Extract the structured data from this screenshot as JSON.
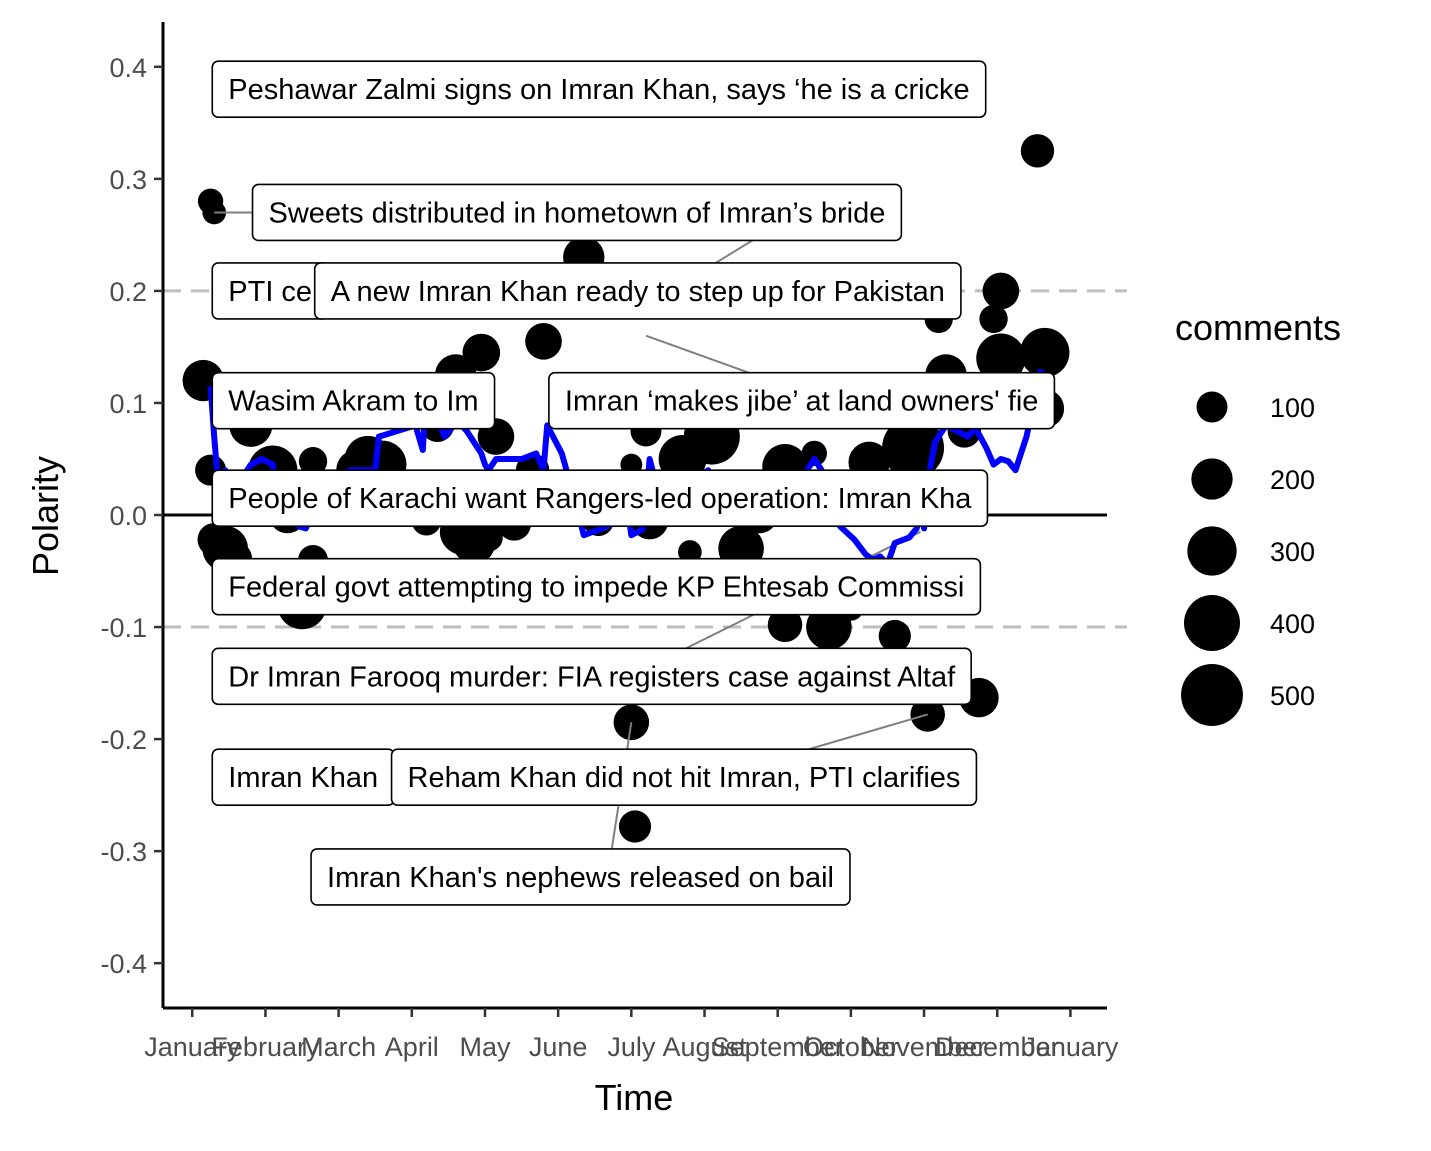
{
  "chart_data": {
    "type": "scatter",
    "xlabel": "Time",
    "ylabel": "Polarity",
    "ylim": [
      -0.44,
      0.44
    ],
    "xlim_months": [
      -0.4,
      12.5
    ],
    "y_ticks": [
      {
        "value": 0.4,
        "label": "0.4"
      },
      {
        "value": 0.3,
        "label": "0.3"
      },
      {
        "value": 0.2,
        "label": "0.2"
      },
      {
        "value": 0.1,
        "label": "0.1"
      },
      {
        "value": 0.0,
        "label": "0.0"
      },
      {
        "value": -0.1,
        "label": "-0.1"
      },
      {
        "value": -0.2,
        "label": "-0.2"
      },
      {
        "value": -0.3,
        "label": "-0.3"
      },
      {
        "value": -0.4,
        "label": "-0.4"
      }
    ],
    "x_ticks": [
      {
        "value": 0,
        "label": "January"
      },
      {
        "value": 1,
        "label": "February"
      },
      {
        "value": 2,
        "label": "March"
      },
      {
        "value": 3,
        "label": "April"
      },
      {
        "value": 4,
        "label": "May"
      },
      {
        "value": 5,
        "label": "June"
      },
      {
        "value": 6,
        "label": "July"
      },
      {
        "value": 7,
        "label": "August"
      },
      {
        "value": 8,
        "label": "September"
      },
      {
        "value": 9,
        "label": "October"
      },
      {
        "value": 10,
        "label": "November"
      },
      {
        "value": 11,
        "label": "December"
      },
      {
        "value": 12,
        "label": "January"
      }
    ],
    "reference_lines": {
      "solid": [
        0.0
      ],
      "dashed": [
        0.2,
        -0.1
      ]
    },
    "legend": {
      "title": "comments",
      "position": "right",
      "entries": [
        {
          "label": "100",
          "value": 100
        },
        {
          "label": "200",
          "value": 200
        },
        {
          "label": "300",
          "value": 300
        },
        {
          "label": "400",
          "value": 400
        },
        {
          "label": "500",
          "value": 500
        }
      ]
    },
    "points": [
      {
        "x": 0.25,
        "y": 0.28,
        "c": 60
      },
      {
        "x": 0.3,
        "y": 0.27,
        "c": 50
      },
      {
        "x": 0.15,
        "y": 0.12,
        "c": 200
      },
      {
        "x": 0.25,
        "y": 0.04,
        "c": 100
      },
      {
        "x": 0.3,
        "y": -0.022,
        "c": 120
      },
      {
        "x": 0.45,
        "y": -0.03,
        "c": 250
      },
      {
        "x": 0.55,
        "y": -0.04,
        "c": 180
      },
      {
        "x": 0.8,
        "y": 0.08,
        "c": 220
      },
      {
        "x": 1.1,
        "y": 0.04,
        "c": 300
      },
      {
        "x": 1.3,
        "y": 0.0,
        "c": 150
      },
      {
        "x": 1.5,
        "y": -0.08,
        "c": 300
      },
      {
        "x": 1.65,
        "y": 0.048,
        "c": 80
      },
      {
        "x": 1.65,
        "y": -0.04,
        "c": 90
      },
      {
        "x": 2.25,
        "y": 0.04,
        "c": 200
      },
      {
        "x": 2.4,
        "y": 0.05,
        "c": 260
      },
      {
        "x": 2.6,
        "y": 0.045,
        "c": 280
      },
      {
        "x": 3.2,
        "y": -0.005,
        "c": 90
      },
      {
        "x": 3.35,
        "y": 0.08,
        "c": 120
      },
      {
        "x": 3.6,
        "y": 0.125,
        "c": 200
      },
      {
        "x": 3.7,
        "y": -0.015,
        "c": 260
      },
      {
        "x": 3.85,
        "y": -0.025,
        "c": 210
      },
      {
        "x": 3.95,
        "y": 0.145,
        "c": 160
      },
      {
        "x": 4.05,
        "y": -0.02,
        "c": 80
      },
      {
        "x": 4.15,
        "y": 0.07,
        "c": 150
      },
      {
        "x": 4.4,
        "y": -0.008,
        "c": 120
      },
      {
        "x": 4.65,
        "y": 0.04,
        "c": 120
      },
      {
        "x": 4.8,
        "y": 0.155,
        "c": 150
      },
      {
        "x": 5.35,
        "y": 0.23,
        "c": 200
      },
      {
        "x": 5.55,
        "y": -0.005,
        "c": 100
      },
      {
        "x": 6.0,
        "y": 0.045,
        "c": 40
      },
      {
        "x": 6.0,
        "y": -0.185,
        "c": 140
      },
      {
        "x": 6.05,
        "y": -0.278,
        "c": 110
      },
      {
        "x": 6.25,
        "y": -0.005,
        "c": 160
      },
      {
        "x": 6.2,
        "y": 0.075,
        "c": 100
      },
      {
        "x": 6.7,
        "y": 0.05,
        "c": 280
      },
      {
        "x": 6.8,
        "y": -0.033,
        "c": 50
      },
      {
        "x": 7.1,
        "y": 0.07,
        "c": 400
      },
      {
        "x": 7.15,
        "y": 0.01,
        "c": 60
      },
      {
        "x": 7.5,
        "y": -0.03,
        "c": 250
      },
      {
        "x": 7.75,
        "y": 0.0,
        "c": 150
      },
      {
        "x": 8.1,
        "y": 0.043,
        "c": 250
      },
      {
        "x": 8.1,
        "y": -0.098,
        "c": 130
      },
      {
        "x": 8.5,
        "y": 0.055,
        "c": 60
      },
      {
        "x": 8.7,
        "y": -0.1,
        "c": 250
      },
      {
        "x": 8.75,
        "y": 0.01,
        "c": 150
      },
      {
        "x": 9.0,
        "y": -0.083,
        "c": 60
      },
      {
        "x": 9.25,
        "y": 0.047,
        "c": 200
      },
      {
        "x": 9.6,
        "y": -0.108,
        "c": 110
      },
      {
        "x": 9.85,
        "y": 0.06,
        "c": 500
      },
      {
        "x": 10.05,
        "y": -0.178,
        "c": 130
      },
      {
        "x": 10.3,
        "y": 0.125,
        "c": 200
      },
      {
        "x": 10.2,
        "y": 0.175,
        "c": 80
      },
      {
        "x": 10.55,
        "y": 0.075,
        "c": 120
      },
      {
        "x": 10.95,
        "y": 0.175,
        "c": 80
      },
      {
        "x": 11.05,
        "y": 0.14,
        "c": 300
      },
      {
        "x": 11.05,
        "y": 0.2,
        "c": 150
      },
      {
        "x": 11.55,
        "y": 0.325,
        "c": 120
      },
      {
        "x": 11.65,
        "y": 0.145,
        "c": 300
      },
      {
        "x": 11.65,
        "y": 0.095,
        "c": 170
      },
      {
        "x": 10.75,
        "y": -0.163,
        "c": 180
      }
    ],
    "trend_line": {
      "color": "#0000ff",
      "points": [
        [
          0.25,
          0.115
        ],
        [
          0.3,
          0.07
        ],
        [
          0.35,
          0.03
        ],
        [
          0.45,
          0.04
        ],
        [
          0.55,
          0.01
        ],
        [
          0.65,
          0.03
        ],
        [
          0.8,
          0.045
        ],
        [
          0.95,
          0.05
        ],
        [
          1.1,
          0.045
        ],
        [
          1.15,
          0.015
        ],
        [
          1.25,
          0.02
        ],
        [
          1.35,
          0.01
        ],
        [
          1.45,
          -0.01
        ],
        [
          1.55,
          -0.012
        ],
        [
          1.65,
          0.0
        ],
        [
          1.9,
          0.02
        ],
        [
          2.15,
          0.04
        ],
        [
          2.5,
          0.04
        ],
        [
          2.55,
          0.07
        ],
        [
          2.8,
          0.075
        ],
        [
          3.05,
          0.08
        ],
        [
          3.15,
          0.058
        ],
        [
          3.2,
          0.11
        ],
        [
          3.35,
          0.085
        ],
        [
          3.45,
          0.07
        ],
        [
          3.55,
          0.078
        ],
        [
          3.65,
          0.082
        ],
        [
          3.75,
          0.075
        ],
        [
          3.85,
          0.065
        ],
        [
          3.95,
          0.055
        ],
        [
          4.0,
          0.045
        ],
        [
          4.05,
          0.04
        ],
        [
          4.15,
          0.05
        ],
        [
          4.5,
          0.05
        ],
        [
          4.7,
          0.055
        ],
        [
          4.8,
          0.04
        ],
        [
          4.85,
          0.08
        ],
        [
          5.05,
          0.055
        ],
        [
          5.2,
          0.02
        ],
        [
          5.35,
          -0.018
        ],
        [
          5.6,
          -0.012
        ],
        [
          5.85,
          -0.005
        ],
        [
          5.95,
          0.005
        ],
        [
          6.0,
          -0.018
        ],
        [
          6.15,
          -0.013
        ],
        [
          6.2,
          0.01
        ],
        [
          6.25,
          0.05
        ],
        [
          6.35,
          0.025
        ],
        [
          6.55,
          0.02
        ],
        [
          6.7,
          0.03
        ],
        [
          6.75,
          0.02
        ],
        [
          6.8,
          0.025
        ],
        [
          6.95,
          0.035
        ],
        [
          7.05,
          0.04
        ],
        [
          7.1,
          0.015
        ],
        [
          7.5,
          0.015
        ],
        [
          7.65,
          0.005
        ],
        [
          7.8,
          0.005
        ],
        [
          8.0,
          0.007
        ],
        [
          8.2,
          0.02
        ],
        [
          8.5,
          0.05
        ],
        [
          8.6,
          0.04
        ],
        [
          8.7,
          0.01
        ],
        [
          8.85,
          -0.01
        ],
        [
          9.05,
          -0.022
        ],
        [
          9.2,
          -0.035
        ],
        [
          9.3,
          -0.04
        ],
        [
          9.4,
          -0.037
        ],
        [
          9.5,
          -0.044
        ],
        [
          9.6,
          -0.025
        ],
        [
          9.8,
          -0.02
        ],
        [
          9.9,
          -0.012
        ],
        [
          9.95,
          0.005
        ],
        [
          10.0,
          -0.012
        ],
        [
          10.05,
          0.03
        ],
        [
          10.15,
          0.065
        ],
        [
          10.3,
          0.08
        ],
        [
          10.45,
          0.075
        ],
        [
          10.6,
          0.07
        ],
        [
          10.7,
          0.078
        ],
        [
          10.85,
          0.06
        ],
        [
          10.95,
          0.045
        ],
        [
          11.05,
          0.05
        ],
        [
          11.15,
          0.048
        ],
        [
          11.25,
          0.04
        ],
        [
          11.4,
          0.07
        ],
        [
          11.5,
          0.1
        ],
        [
          11.6,
          0.13
        ]
      ]
    },
    "annotations": [
      {
        "text": "Peshawar Zalmi signs on Imran Khan, says ‘he is a cricke",
        "box_x": 0.0,
        "box_y": 0.38,
        "clipped": true
      },
      {
        "text": "Sweets distributed in hometown of Imran’s bride",
        "box_x": 0.55,
        "box_y": 0.27,
        "point_x": 0.3,
        "point_y": 0.27,
        "clipped": false
      },
      {
        "text": "PTI ce",
        "box_x": 0.0,
        "box_y": 0.2,
        "clipped": true
      },
      {
        "text": "A new Imran Khan ready to step up for Pakistan",
        "box_x": 1.4,
        "box_y": 0.2,
        "point_x": 8.65,
        "point_y": 0.285,
        "clipped": false
      },
      {
        "text": "Wasim Akram to Im",
        "box_x": 0.0,
        "box_y": 0.102,
        "clipped": true
      },
      {
        "text": "Imran ‘makes jibe’ at land owners' fie",
        "box_x": 4.6,
        "box_y": 0.102,
        "point_x": 6.2,
        "point_y": 0.16,
        "clipped": true
      },
      {
        "text": "People of Karachi want Rangers-led operation: Imran Kha",
        "box_x": 0.0,
        "box_y": 0.015,
        "clipped": true
      },
      {
        "text": "Federal govt attempting to impede KP Ehtesab Commissi",
        "box_x": 0.0,
        "box_y": -0.064,
        "clipped": true
      },
      {
        "text": "Dr Imran Farooq murder: FIA registers case against Altaf",
        "box_x": 0.0,
        "box_y": -0.144,
        "point_x": 9.95,
        "point_y": -0.015,
        "clipped": true
      },
      {
        "text": "Imran Khan",
        "box_x": 0.0,
        "box_y": -0.234,
        "clipped": true
      },
      {
        "text": "Reham Khan did not hit Imran, PTI clarifies",
        "box_x": 2.45,
        "box_y": -0.234,
        "point_x": 10.05,
        "point_y": -0.178,
        "clipped": false
      },
      {
        "text": "Imran Khan's nephews released on bail",
        "box_x": 1.35,
        "box_y": -0.323,
        "point_x": 6.0,
        "point_y": -0.185,
        "clipped": false
      }
    ]
  }
}
